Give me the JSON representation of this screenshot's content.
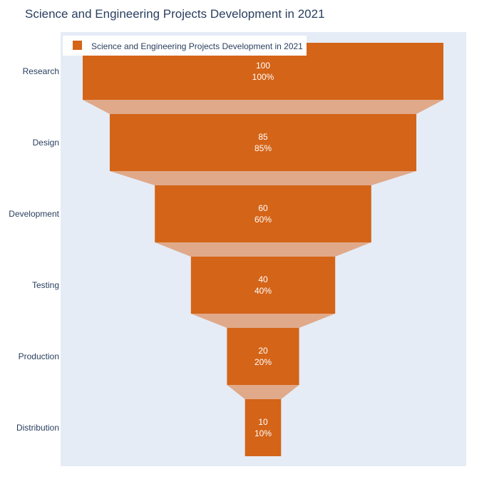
{
  "chart_data": {
    "type": "funnel",
    "title": "Science and Engineering Projects Development in 2021",
    "categories": [
      "Research",
      "Design",
      "Development",
      "Testing",
      "Production",
      "Distribution"
    ],
    "values": [
      100,
      85,
      60,
      40,
      20,
      10
    ],
    "percent_labels": [
      "100%",
      "85%",
      "60%",
      "40%",
      "20%",
      "10%"
    ],
    "series": [
      {
        "name": "Science and Engineering Projects Development in 2021",
        "values": [
          100,
          85,
          60,
          40,
          20,
          10
        ]
      }
    ],
    "legend": {
      "position": "top-left"
    },
    "colors": {
      "bar": "#d46418",
      "connector": "#e0a98a",
      "plot_bg": "#e5ecf6",
      "text": "#2a3f5f"
    }
  }
}
